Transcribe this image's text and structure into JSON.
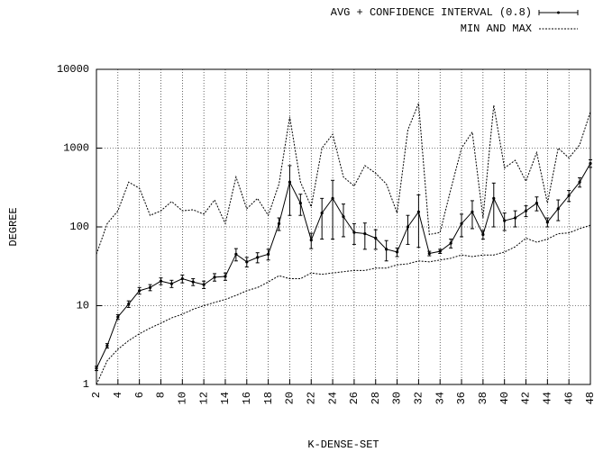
{
  "chart_data": {
    "type": "line",
    "x_label": "K-DENSE-SET",
    "y_label": "DEGREE",
    "x": [
      2,
      3,
      4,
      5,
      6,
      7,
      8,
      9,
      10,
      11,
      12,
      13,
      14,
      15,
      16,
      17,
      18,
      19,
      20,
      21,
      22,
      23,
      24,
      25,
      26,
      27,
      28,
      29,
      30,
      31,
      32,
      33,
      34,
      35,
      36,
      37,
      38,
      39,
      40,
      41,
      42,
      43,
      44,
      45,
      46,
      47,
      48
    ],
    "series": [
      {
        "name": "AVG + CONFIDENCE INTERVAL (0.8)",
        "color": "#000000",
        "style": "errorbars",
        "values": [
          1.6,
          3.1,
          7.2,
          10.5,
          15.5,
          17,
          20.5,
          19,
          22,
          20,
          18.5,
          23,
          23.5,
          45,
          36,
          41,
          45,
          110,
          370,
          200,
          68,
          150,
          230,
          135,
          85,
          82,
          72,
          52,
          48,
          100,
          155,
          46,
          49,
          62,
          110,
          155,
          80,
          230,
          120,
          130,
          160,
          200,
          115,
          170,
          250,
          370,
          640
        ],
        "errors": [
          0.1,
          0.2,
          0.5,
          1,
          1.5,
          1.5,
          2,
          2,
          2.5,
          2,
          2,
          2.5,
          2.5,
          8,
          5,
          6,
          7,
          20,
          230,
          60,
          15,
          80,
          160,
          60,
          25,
          30,
          20,
          15,
          6,
          40,
          100,
          3,
          3,
          8,
          35,
          60,
          10,
          130,
          30,
          30,
          25,
          40,
          15,
          50,
          40,
          50,
          70
        ]
      },
      {
        "name": "MIN AND MAX",
        "color": "#000000",
        "style": "dotted",
        "min": [
          1,
          2,
          2.8,
          3.6,
          4.4,
          5.2,
          6,
          7,
          7.8,
          9,
          10,
          11,
          12,
          13.5,
          15.5,
          17,
          20,
          24,
          22,
          22,
          26,
          25,
          26,
          27,
          28,
          28,
          30,
          30,
          33,
          34,
          37,
          36,
          38,
          40,
          44,
          42,
          44,
          44,
          48,
          56,
          72,
          64,
          70,
          82,
          84,
          95,
          105
        ],
        "max": [
          45,
          110,
          160,
          370,
          310,
          140,
          160,
          210,
          160,
          165,
          145,
          220,
          110,
          430,
          170,
          230,
          140,
          350,
          2500,
          370,
          180,
          1000,
          1500,
          430,
          330,
          600,
          480,
          350,
          150,
          1700,
          3700,
          80,
          85,
          300,
          1000,
          1600,
          130,
          3500,
          560,
          700,
          380,
          880,
          200,
          1000,
          750,
          1100,
          2900
        ]
      }
    ],
    "xlim": [
      2,
      48
    ],
    "xticks": [
      2,
      4,
      6,
      8,
      10,
      12,
      14,
      16,
      18,
      20,
      22,
      24,
      26,
      28,
      30,
      32,
      34,
      36,
      38,
      40,
      42,
      44,
      46,
      48
    ],
    "ylim": [
      1,
      10000
    ],
    "yticks": [
      1,
      10,
      100,
      1000,
      10000
    ],
    "ylog": true,
    "grid": true,
    "legend": "top-right"
  }
}
